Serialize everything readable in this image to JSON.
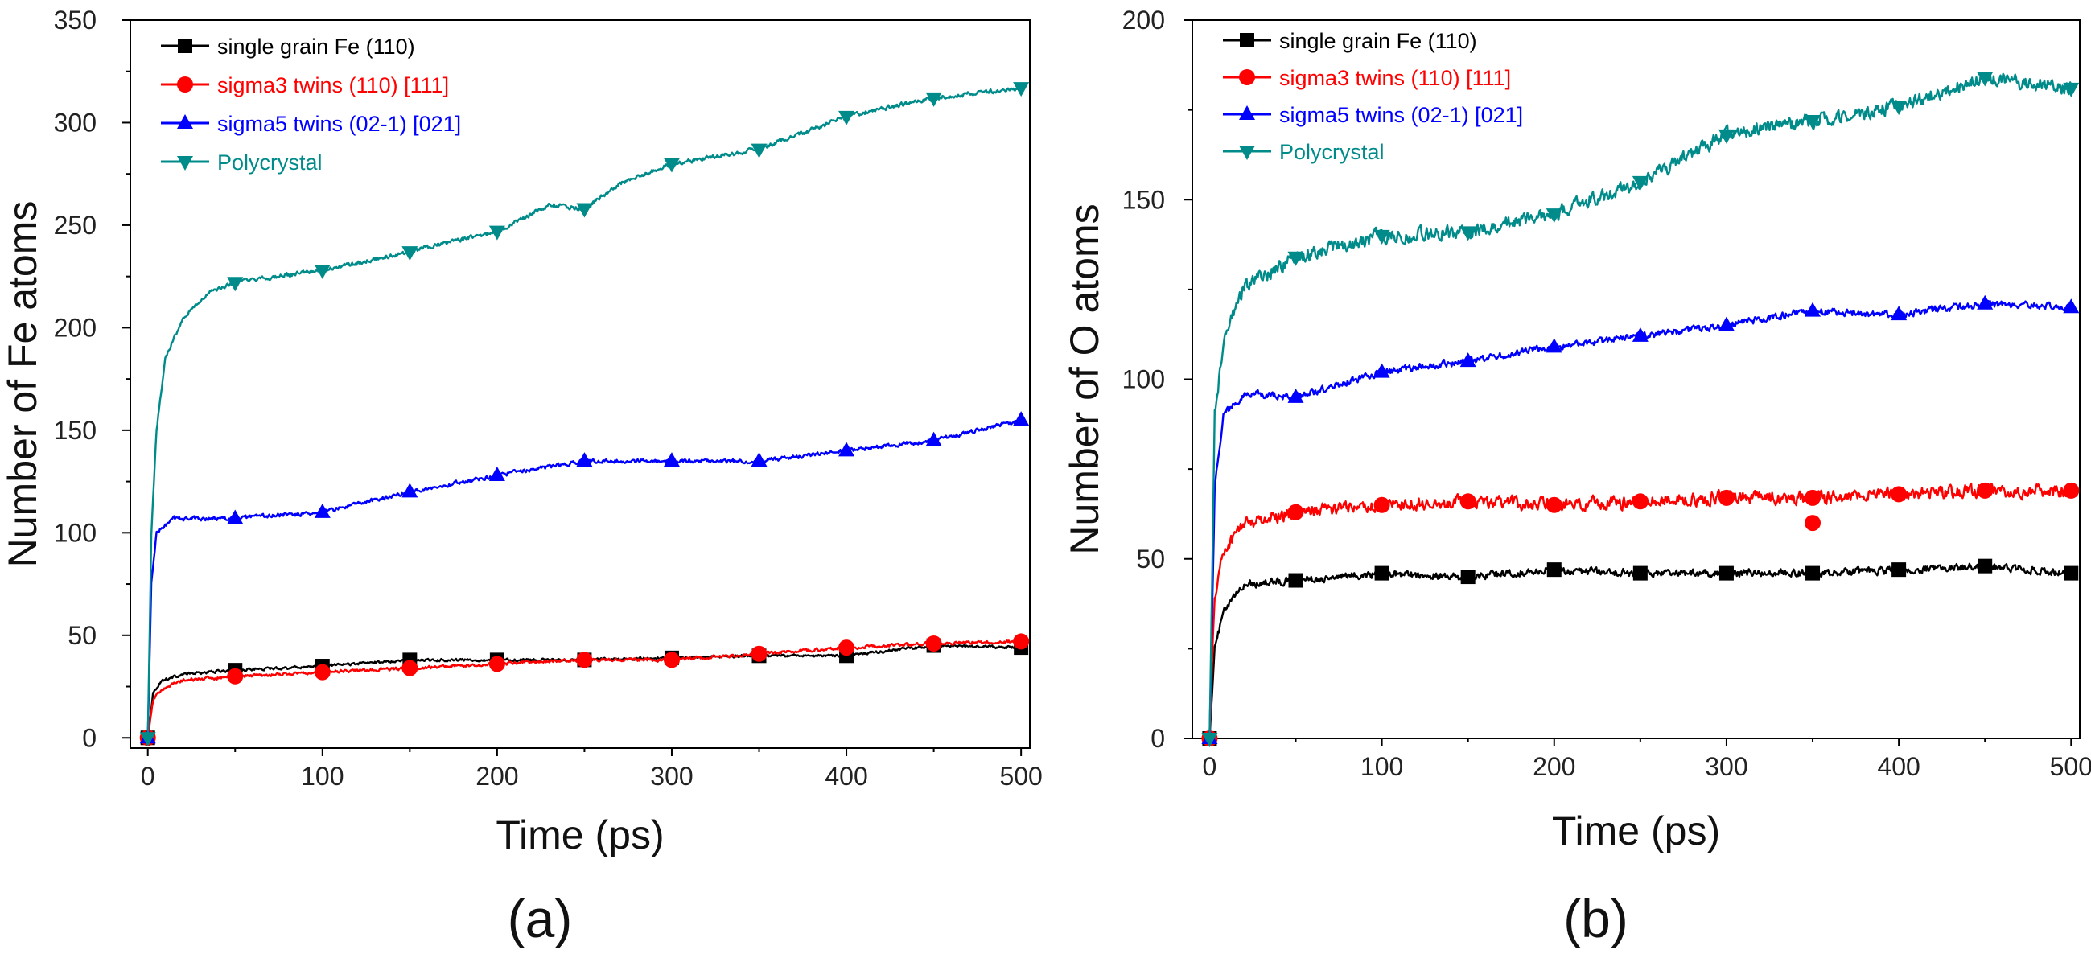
{
  "chart_data": [
    {
      "type": "line",
      "panel_label": "(a)",
      "xlabel": "Time (ps)",
      "ylabel": "Number of Fe atoms",
      "xlim": [
        -10,
        505
      ],
      "ylim": [
        -5,
        350
      ],
      "xticks": [
        0,
        100,
        200,
        300,
        400,
        500
      ],
      "yticks": [
        0,
        50,
        100,
        150,
        200,
        250,
        300,
        350
      ],
      "legend_position": "top-left",
      "series": [
        {
          "name": "single grain Fe (110)",
          "color": "#000000",
          "marker": "square",
          "keypoints": [
            [
              0,
              0
            ],
            [
              3,
              22
            ],
            [
              8,
              28
            ],
            [
              20,
              31
            ],
            [
              50,
              33
            ],
            [
              100,
              35
            ],
            [
              150,
              38
            ],
            [
              200,
              38
            ],
            [
              250,
              38
            ],
            [
              300,
              39
            ],
            [
              350,
              40
            ],
            [
              400,
              40
            ],
            [
              450,
              45
            ],
            [
              500,
              44
            ]
          ],
          "marker_x": [
            0,
            50,
            100,
            150,
            200,
            250,
            300,
            350,
            400,
            450,
            500
          ],
          "noise": 1.0
        },
        {
          "name": "sigma3 twins (110) [111]",
          "color": "#ff0000",
          "marker": "circle",
          "keypoints": [
            [
              0,
              0
            ],
            [
              3,
              18
            ],
            [
              8,
              24
            ],
            [
              20,
              28
            ],
            [
              50,
              30
            ],
            [
              100,
              32
            ],
            [
              150,
              34
            ],
            [
              200,
              36
            ],
            [
              250,
              38
            ],
            [
              300,
              38
            ],
            [
              350,
              41
            ],
            [
              400,
              44
            ],
            [
              450,
              46
            ],
            [
              500,
              47
            ]
          ],
          "marker_x": [
            0,
            50,
            100,
            150,
            200,
            250,
            300,
            350,
            400,
            450,
            500
          ],
          "noise": 1.2
        },
        {
          "name": "sigma5 twins (02-1) [021]",
          "color": "#0000ff",
          "marker": "triangle-up",
          "keypoints": [
            [
              0,
              0
            ],
            [
              2,
              75
            ],
            [
              5,
              100
            ],
            [
              15,
              107
            ],
            [
              50,
              107
            ],
            [
              100,
              110
            ],
            [
              150,
              120
            ],
            [
              200,
              128
            ],
            [
              250,
              135
            ],
            [
              300,
              135
            ],
            [
              350,
              135
            ],
            [
              400,
              140
            ],
            [
              450,
              145
            ],
            [
              500,
              155
            ]
          ],
          "marker_x": [
            0,
            50,
            100,
            150,
            200,
            250,
            300,
            350,
            400,
            450,
            500
          ],
          "noise": 1.5
        },
        {
          "name": "Polycrystal",
          "color": "#008b8b",
          "marker": "triangle-down",
          "keypoints": [
            [
              0,
              0
            ],
            [
              2,
              100
            ],
            [
              5,
              150
            ],
            [
              10,
              185
            ],
            [
              20,
              205
            ],
            [
              35,
              217
            ],
            [
              50,
              222
            ],
            [
              100,
              228
            ],
            [
              150,
              237
            ],
            [
              200,
              247
            ],
            [
              230,
              260
            ],
            [
              250,
              258
            ],
            [
              270,
              270
            ],
            [
              300,
              280
            ],
            [
              350,
              287
            ],
            [
              400,
              303
            ],
            [
              450,
              312
            ],
            [
              500,
              317
            ]
          ],
          "marker_x": [
            0,
            50,
            100,
            150,
            200,
            250,
            300,
            350,
            400,
            450,
            500
          ],
          "noise": 1.6
        }
      ]
    },
    {
      "type": "line",
      "panel_label": "(b)",
      "xlabel": "Time (ps)",
      "ylabel": "Number of O atoms",
      "xlim": [
        -10,
        505
      ],
      "ylim": [
        0,
        200
      ],
      "xticks": [
        0,
        100,
        200,
        300,
        400,
        500
      ],
      "yticks": [
        0,
        50,
        100,
        150,
        200
      ],
      "legend_position": "top-left",
      "series": [
        {
          "name": "single grain Fe (110)",
          "color": "#000000",
          "marker": "square",
          "keypoints": [
            [
              0,
              0
            ],
            [
              3,
              25
            ],
            [
              8,
              35
            ],
            [
              20,
              43
            ],
            [
              50,
              44
            ],
            [
              100,
              46
            ],
            [
              150,
              45
            ],
            [
              200,
              47
            ],
            [
              250,
              46
            ],
            [
              300,
              46
            ],
            [
              350,
              46
            ],
            [
              400,
              47
            ],
            [
              450,
              48
            ],
            [
              500,
              46
            ]
          ],
          "marker_x": [
            0,
            50,
            100,
            150,
            200,
            250,
            300,
            350,
            400,
            450,
            500
          ],
          "noise": 1.6
        },
        {
          "name": "sigma3 twins (110) [111]",
          "color": "#ff0000",
          "marker": "circle",
          "keypoints": [
            [
              0,
              0
            ],
            [
              3,
              40
            ],
            [
              8,
              52
            ],
            [
              20,
              60
            ],
            [
              50,
              63
            ],
            [
              100,
              65
            ],
            [
              150,
              66
            ],
            [
              200,
              65
            ],
            [
              250,
              66
            ],
            [
              300,
              67
            ],
            [
              350,
              67
            ],
            [
              400,
              68
            ],
            [
              450,
              69
            ],
            [
              500,
              69
            ]
          ],
          "marker_x": [
            0,
            50,
            100,
            150,
            200,
            250,
            300,
            350,
            400,
            450,
            500
          ],
          "extra_markers": [
            [
              350,
              60
            ]
          ],
          "noise": 2.8
        },
        {
          "name": "sigma5 twins (02-1) [021]",
          "color": "#0000ff",
          "marker": "triangle-up",
          "keypoints": [
            [
              0,
              0
            ],
            [
              3,
              70
            ],
            [
              8,
              90
            ],
            [
              20,
              96
            ],
            [
              50,
              95
            ],
            [
              100,
              102
            ],
            [
              150,
              105
            ],
            [
              200,
              109
            ],
            [
              250,
              112
            ],
            [
              300,
              115
            ],
            [
              350,
              119
            ],
            [
              400,
              118
            ],
            [
              450,
              121
            ],
            [
              500,
              120
            ]
          ],
          "marker_x": [
            0,
            50,
            100,
            150,
            200,
            250,
            300,
            350,
            400,
            450,
            500
          ],
          "noise": 1.5
        },
        {
          "name": "Polycrystal",
          "color": "#008b8b",
          "marker": "triangle-down",
          "keypoints": [
            [
              0,
              0
            ],
            [
              3,
              90
            ],
            [
              8,
              110
            ],
            [
              20,
              126
            ],
            [
              50,
              134
            ],
            [
              100,
              140
            ],
            [
              150,
              141
            ],
            [
              200,
              146
            ],
            [
              250,
              155
            ],
            [
              300,
              168
            ],
            [
              350,
              172
            ],
            [
              400,
              176
            ],
            [
              450,
              184
            ],
            [
              500,
              181
            ]
          ],
          "marker_x": [
            0,
            50,
            100,
            150,
            200,
            250,
            300,
            350,
            400,
            450,
            500
          ],
          "noise": 3.0
        }
      ]
    }
  ]
}
